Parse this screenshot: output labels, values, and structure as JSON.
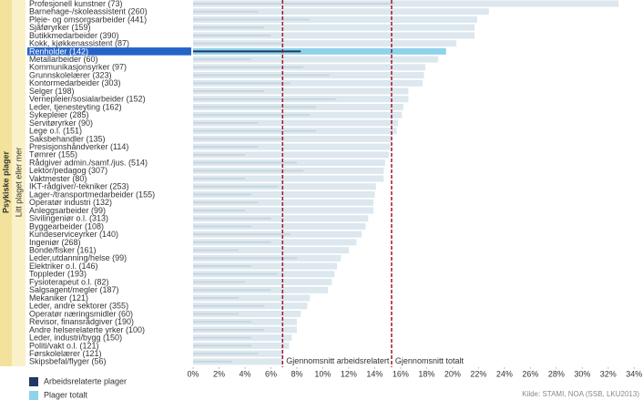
{
  "chart_data": {
    "type": "barh",
    "group_label": "Psykiske plager",
    "ylabel": "Litt plaget eller mer",
    "source": "Kilde: STAMI, NOA (SSB, LKU2013)",
    "categories": [
      "Profesjonell kunstner (73)",
      "Barnehage-/skoleassistent (260)",
      "Pleie- og omsorgsarbeider (441)",
      "Sjåføryrker (159)",
      "Butikkmedarbeider (390)",
      "Kokk, kjøkkenassistent (87)",
      "Renholder (142)",
      "Metallarbeider (60)",
      "Kommunikasjonsyrker (97)",
      "Grunnskolelærer (323)",
      "Kontormedarbeider (303)",
      "Selger (198)",
      "Vernepleier/sosialarbeider (152)",
      "Leder, tjenesteyting (162)",
      "Sykepleier (285)",
      "Servitøryrker (90)",
      "Lege o.l. (151)",
      "Saksbehandler (135)",
      "Presisjonshåndverker (114)",
      "Tømrer (155)",
      "Rådgiver admin./samf./jus. (514)",
      "Lektor/pedagog (307)",
      "Vaktmester (80)",
      "IKT-rådgiver/-tekniker (253)",
      "Lager-/transportmedarbeider (155)",
      "Operatør industri (132)",
      "Anleggsarbeider (99)",
      "Sivilingeniør o.l. (313)",
      "Byggearbeider (108)",
      "Kundeserviceyrker (140)",
      "Ingeniør (268)",
      "Bonde/fisker (161)",
      "Leder,utdanning/helse (99)",
      "Elektriker o.l. (146)",
      "Toppleder (193)",
      "Fysioterapeut o.l. (82)",
      "Salgsagent/megler (187)",
      "Mekaniker (121)",
      "Leder, andre sektorer (355)",
      "Operatør næringsmidler (60)",
      "Revisor, finansrådgiver (190)",
      "Andre helserelaterte yrker (100)",
      "Leder, industri/bygg (150)",
      "Politi/vakt o.l. (121)",
      "Førskolelærer (121)",
      "Skipsbefal/flyger (56)"
    ],
    "series": [
      {
        "name": "Plager totalt",
        "color": "#dce7ee",
        "highlight_color": "#8fd3ea",
        "values": [
          32.8,
          22.8,
          21.9,
          21.7,
          21.7,
          20.3,
          19.5,
          18.9,
          17.9,
          17.8,
          17.7,
          16.6,
          16.6,
          16.2,
          16.1,
          15.8,
          15.7,
          15.3,
          15.2,
          15.1,
          14.8,
          14.7,
          14.7,
          14.1,
          14.0,
          13.9,
          13.9,
          13.5,
          13.3,
          13.0,
          12.6,
          12.0,
          11.4,
          11.1,
          10.9,
          10.7,
          10.4,
          9.0,
          8.8,
          8.3,
          8.0,
          8.0,
          7.6,
          7.4,
          6.9,
          6.9
        ]
      },
      {
        "name": "Arbeidsrelaterte plager",
        "color": "#c9d6df",
        "highlight_color": "#1f3864",
        "values": [
          15.5,
          5.0,
          9.0,
          5.5,
          6.0,
          7.0,
          8.3,
          4.5,
          8.5,
          10.5,
          7.5,
          5.5,
          11.0,
          9.5,
          9.0,
          5.0,
          9.5,
          7.0,
          5.0,
          4.0,
          8.0,
          8.5,
          4.0,
          6.5,
          4.5,
          5.0,
          4.0,
          6.0,
          4.5,
          7.5,
          6.0,
          3.5,
          8.0,
          4.5,
          6.5,
          4.0,
          6.0,
          3.5,
          5.5,
          3.5,
          4.5,
          5.5,
          4.5,
          4.5,
          5.0,
          3.0
        ]
      }
    ],
    "highlight_index": 6,
    "reference_lines": [
      {
        "value": 6.9,
        "label": "Gjennomsnitt arbeidsrelatert"
      },
      {
        "value": 15.3,
        "label": "Gjennomsnitt totalt"
      }
    ],
    "reference_color": "#a01830",
    "xlim": [
      0,
      34.4
    ],
    "xticks": [
      {
        "value": 0,
        "label": "0%"
      },
      {
        "value": 2,
        "label": "2%"
      },
      {
        "value": 4,
        "label": "4%"
      },
      {
        "value": 6,
        "label": "6%"
      },
      {
        "value": 8,
        "label": "8%"
      },
      {
        "value": 10,
        "label": "10%"
      },
      {
        "value": 12,
        "label": "12%"
      },
      {
        "value": 14,
        "label": "14%"
      },
      {
        "value": 16,
        "label": "16%"
      },
      {
        "value": 18,
        "label": "18%"
      },
      {
        "value": 20,
        "label": "20%"
      },
      {
        "value": 22,
        "label": "22%"
      },
      {
        "value": 24,
        "label": "24%"
      },
      {
        "value": 26,
        "label": "26%"
      },
      {
        "value": 28,
        "label": "28%"
      },
      {
        "value": 30,
        "label": "30%"
      },
      {
        "value": 32,
        "label": "32%"
      },
      {
        "value": 34,
        "label": "34%"
      }
    ]
  }
}
